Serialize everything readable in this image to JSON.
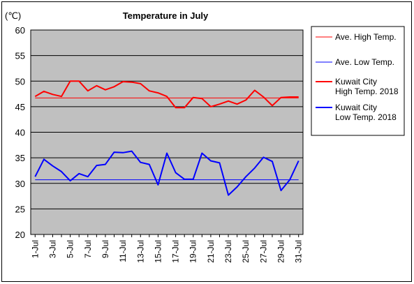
{
  "chart_data": {
    "type": "line",
    "title": "Temperature in July",
    "unit_label": "(℃)",
    "ylim": [
      20,
      60
    ],
    "yticks": [
      20,
      25,
      30,
      35,
      40,
      45,
      50,
      55,
      60
    ],
    "x": [
      "1-Jul",
      "2-Jul",
      "3-Jul",
      "4-Jul",
      "5-Jul",
      "6-Jul",
      "7-Jul",
      "8-Jul",
      "9-Jul",
      "10-Jul",
      "11-Jul",
      "12-Jul",
      "13-Jul",
      "14-Jul",
      "15-Jul",
      "16-Jul",
      "17-Jul",
      "18-Jul",
      "19-Jul",
      "20-Jul",
      "21-Jul",
      "22-Jul",
      "23-Jul",
      "24-Jul",
      "25-Jul",
      "26-Jul",
      "27-Jul",
      "28-Jul",
      "29-Jul",
      "30-Jul",
      "31-Jul"
    ],
    "x_tick_labels": [
      "1-Jul",
      "3-Jul",
      "5-Jul",
      "7-Jul",
      "9-Jul",
      "11-Jul",
      "13-Jul",
      "15-Jul",
      "17-Jul",
      "19-Jul",
      "21-Jul",
      "23-Jul",
      "25-Jul",
      "27-Jul",
      "29-Jul",
      "31-Jul"
    ],
    "grid": true,
    "legend_position": "right",
    "plot_background": "#c0c0c0",
    "series": [
      {
        "name": "Ave. High Temp.",
        "color": "#ff0000",
        "width": 1,
        "values": [
          46.7,
          46.7,
          46.7,
          46.7,
          46.7,
          46.7,
          46.7,
          46.7,
          46.7,
          46.7,
          46.7,
          46.7,
          46.7,
          46.7,
          46.7,
          46.7,
          46.7,
          46.7,
          46.7,
          46.7,
          46.7,
          46.7,
          46.7,
          46.7,
          46.7,
          46.7,
          46.7,
          46.7,
          46.7,
          46.7,
          46.7
        ]
      },
      {
        "name": "Ave. Low Temp.",
        "color": "#0000ff",
        "width": 1,
        "values": [
          30.7,
          30.7,
          30.7,
          30.7,
          30.7,
          30.7,
          30.7,
          30.7,
          30.7,
          30.7,
          30.7,
          30.7,
          30.7,
          30.7,
          30.7,
          30.7,
          30.7,
          30.7,
          30.7,
          30.7,
          30.7,
          30.7,
          30.7,
          30.7,
          30.7,
          30.7,
          30.7,
          30.7,
          30.7,
          30.7,
          30.7
        ]
      },
      {
        "name": "Kuwait City\nHigh Temp. 2018",
        "color": "#ff0000",
        "width": 2,
        "values": [
          47,
          48,
          47.4,
          47,
          50,
          50,
          48.1,
          49.1,
          48.3,
          48.9,
          49.9,
          49.8,
          49.5,
          48.1,
          47.7,
          47,
          44.8,
          44.8,
          46.8,
          46.6,
          45,
          45.5,
          46.1,
          45.5,
          46.3,
          48.2,
          46.9,
          45.2,
          46.8,
          46.9,
          46.9
        ]
      },
      {
        "name": "Kuwait City\nLow Temp. 2018",
        "color": "#0000ff",
        "width": 2,
        "values": [
          31.3,
          34.7,
          33.4,
          32.3,
          30.5,
          31.9,
          31.3,
          33.5,
          33.7,
          36.1,
          36,
          36.3,
          34.1,
          33.7,
          29.7,
          35.9,
          32.1,
          30.8,
          30.8,
          35.9,
          34.4,
          34,
          27.7,
          29.3,
          31.3,
          33,
          35.1,
          34.3,
          28.6,
          30.7,
          34.4
        ]
      }
    ]
  }
}
